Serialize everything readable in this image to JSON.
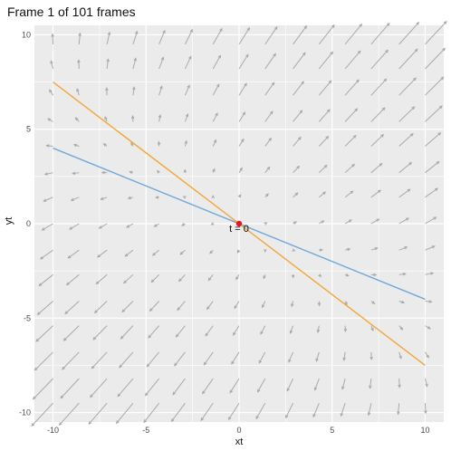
{
  "chart_data": {
    "type": "scatter",
    "title": "Frame 1 of 101 frames",
    "xlabel": "xt",
    "ylabel": "yt",
    "xlim": [
      -11,
      11
    ],
    "ylim": [
      -10.5,
      10.5
    ],
    "x_ticks": [
      -10,
      -5,
      0,
      5,
      10
    ],
    "y_ticks": [
      -10,
      -5,
      0,
      5,
      10
    ],
    "grid": true,
    "panel_background": "#ebebeb",
    "grid_color": "#ffffff",
    "vector_field": {
      "color": "#a9a9a9",
      "x": [
        -10,
        -8.6,
        -7.1,
        -5.7,
        -4.3,
        -2.9,
        -1.4,
        0,
        1.4,
        2.9,
        4.3,
        5.7,
        7.1,
        8.6,
        10
      ],
      "y": [
        -9.5,
        -8.2,
        -6.8,
        -5.4,
        -4.1,
        -2.7,
        -1.4,
        0,
        1.4,
        2.7,
        4.1,
        5.4,
        6.8,
        8.2,
        9.5
      ]
    },
    "series": [
      {
        "color": "#6fa8dc",
        "x": [
          -10,
          10
        ],
        "y": [
          4,
          -4
        ]
      },
      {
        "color": "#f4a637",
        "x": [
          -10,
          10
        ],
        "y": [
          7.5,
          -7.5
        ]
      }
    ],
    "point": {
      "x": 0,
      "y": 0,
      "color": "#e8161b",
      "label": "t = 0"
    }
  }
}
